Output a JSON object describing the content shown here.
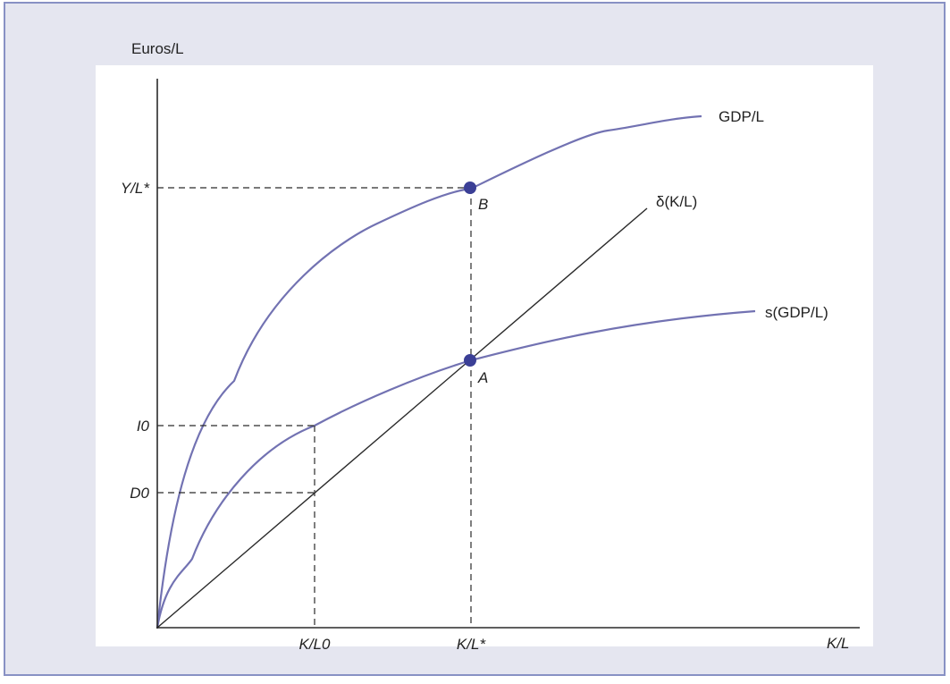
{
  "figure": {
    "y_axis_label": "Euros/L",
    "x_axis_label": "K/L",
    "curves": {
      "gdp": "GDP/L",
      "savings": "s(GDP/L)",
      "depreciation": "δ(K/L)"
    },
    "points": {
      "b": "B",
      "a": "A"
    },
    "y_ticks": {
      "y_star": "Y/L*",
      "i0": "I0",
      "d0": "D0"
    },
    "x_ticks": {
      "k0": "K/L0",
      "k_star": "K/L*"
    }
  },
  "colors": {
    "panel_background": "#e5e6f0",
    "panel_border": "#8891c4",
    "curve": "#7272b2",
    "point": "#3b3f96",
    "axis": "#2a2a2a",
    "dashed": "#2a2a2a"
  }
}
